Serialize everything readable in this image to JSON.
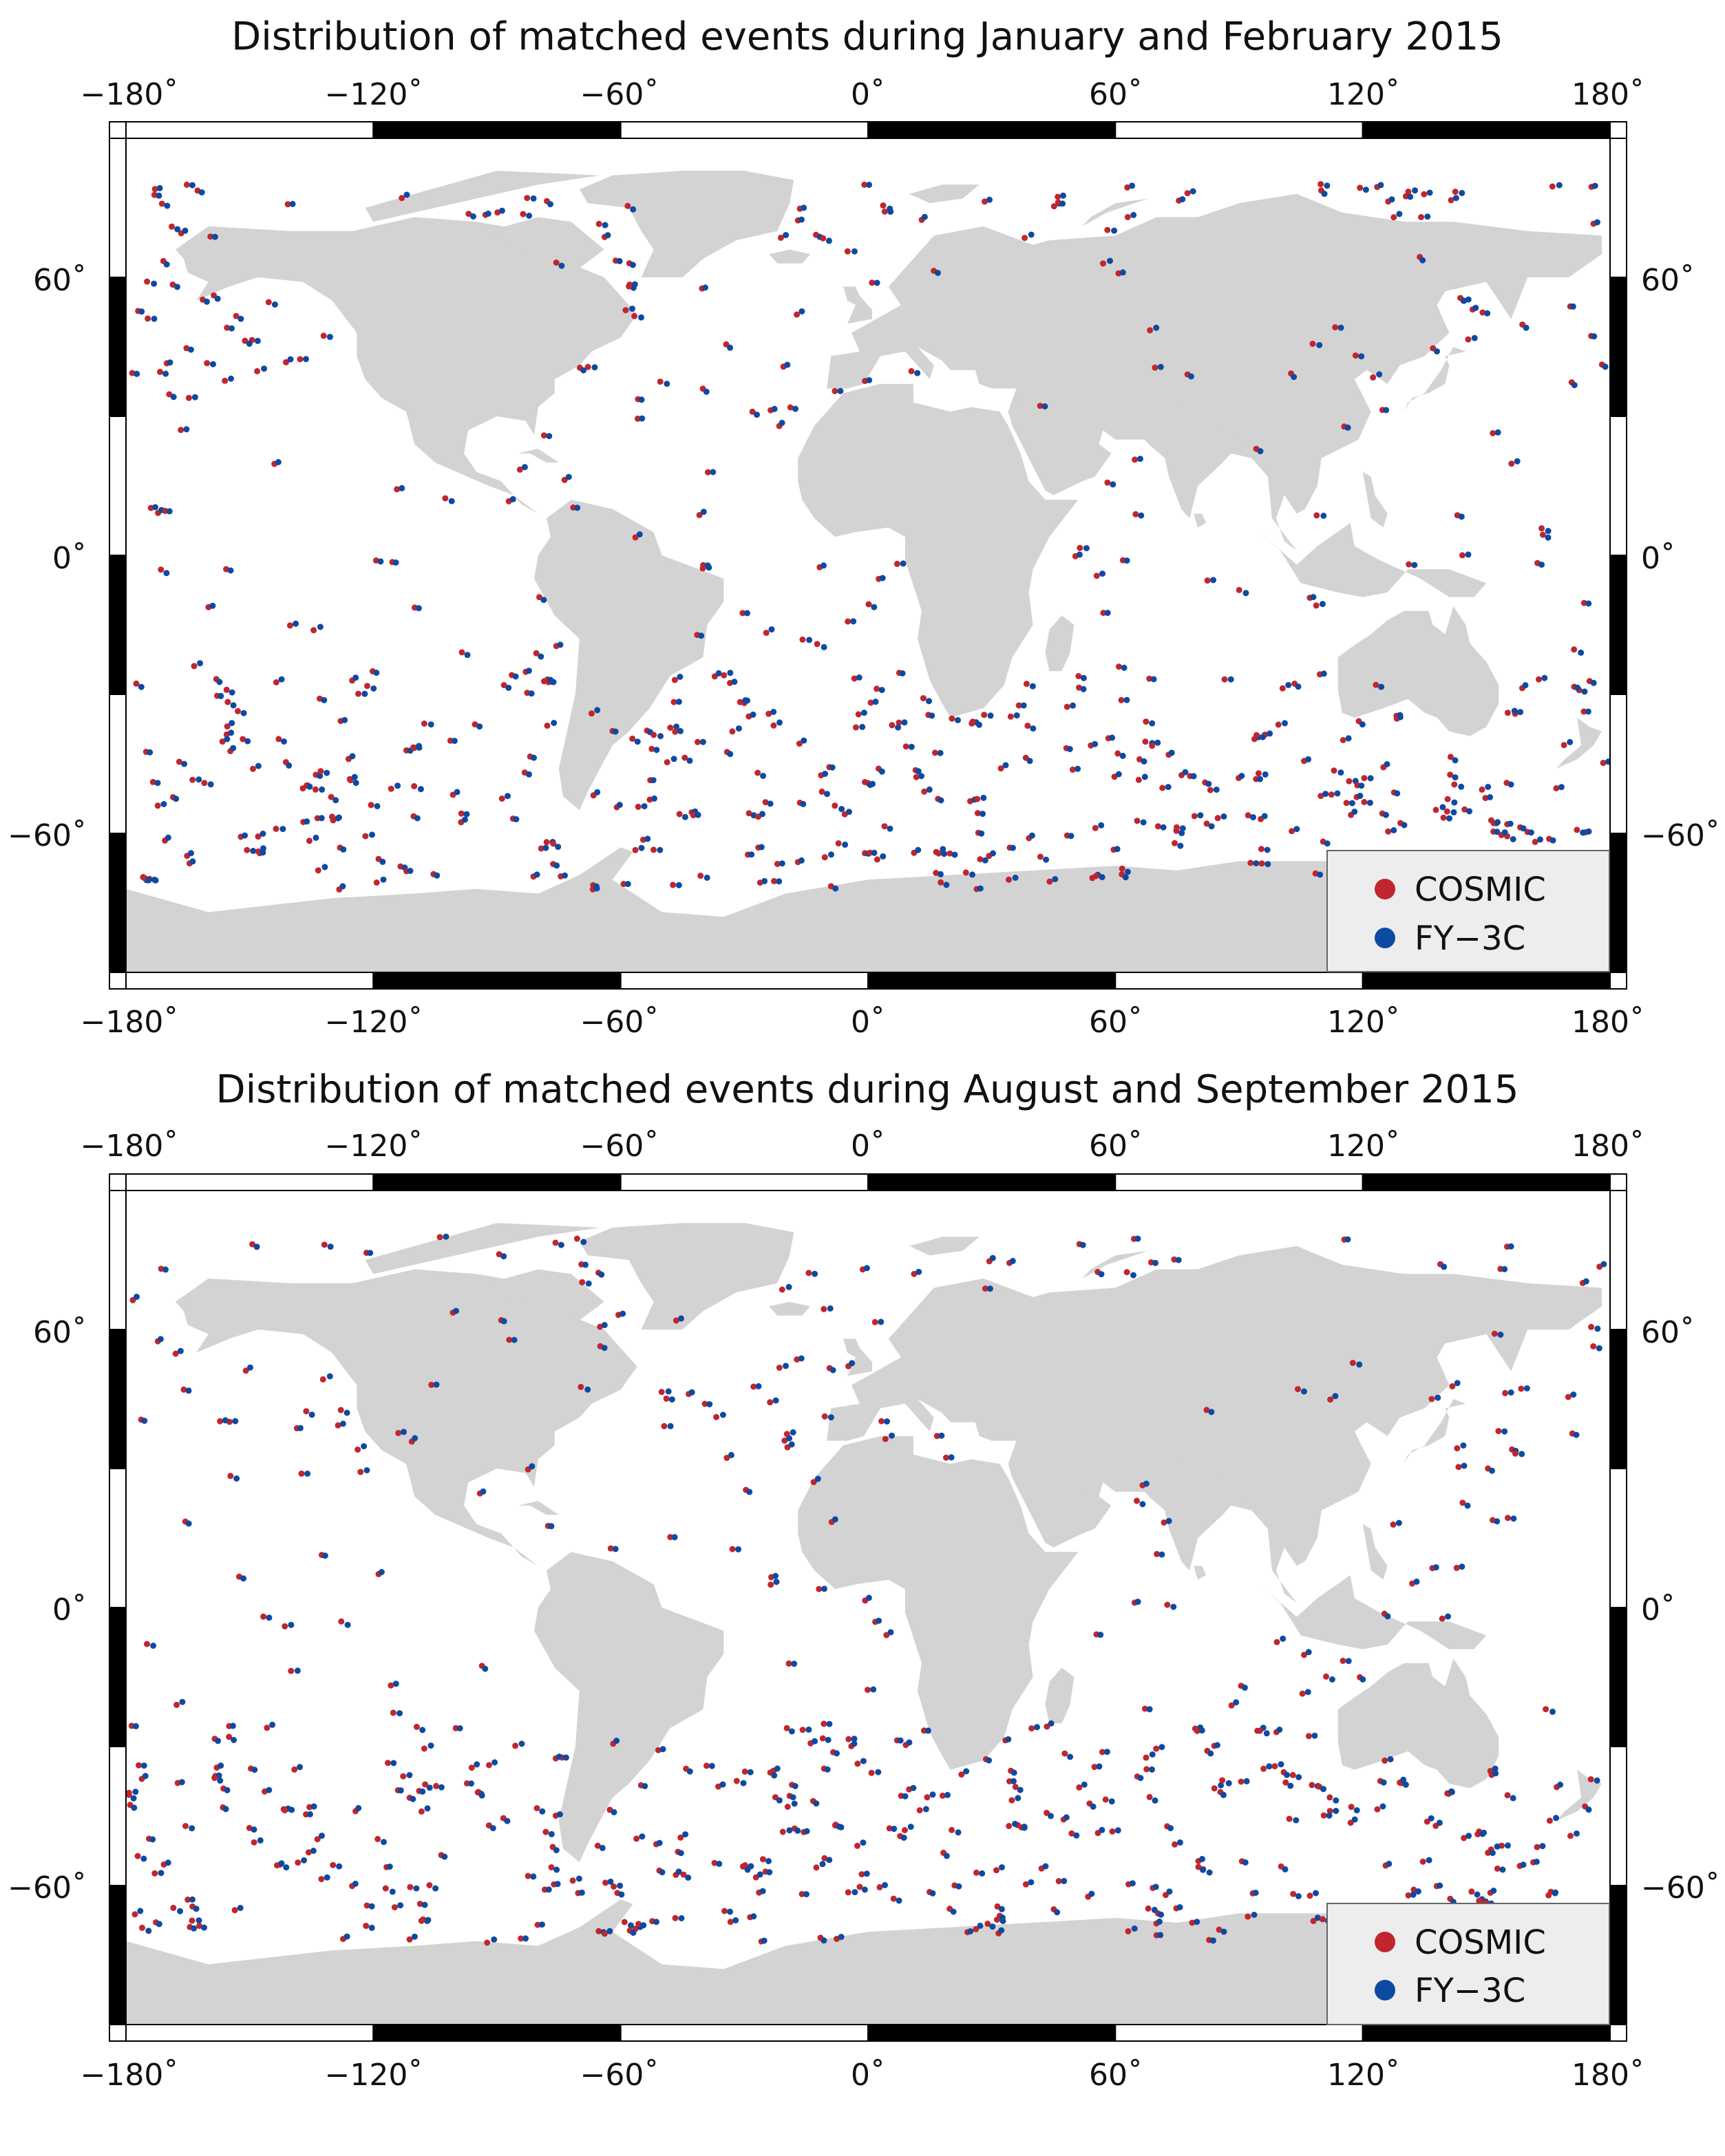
{
  "panels": [
    {
      "id": "jan-feb",
      "title": "Distribution of matched events during January and February 2015",
      "seed": 11,
      "cosmic_count": 520,
      "fy3c_count": 520
    },
    {
      "id": "aug-sep",
      "title": "Distribution of matched events during August and September 2015",
      "seed": 73,
      "cosmic_count": 480,
      "fy3c_count": 480
    }
  ],
  "axis": {
    "lon_ticks": [
      "−180˚",
      "−120˚",
      "−60˚",
      "0˚",
      "60˚",
      "120˚",
      "180˚"
    ],
    "lon_values": [
      -180,
      -120,
      -60,
      0,
      60,
      120,
      180
    ],
    "lat_ticks": [
      "60˚",
      "0˚",
      "−60˚"
    ],
    "lat_values": [
      60,
      0,
      -60
    ],
    "lon_range": [
      -180,
      180
    ],
    "lat_range": [
      -90,
      90
    ]
  },
  "legend": {
    "placement": "bottom-right",
    "items": [
      {
        "label": "COSMIC",
        "color": "#c0262d"
      },
      {
        "label": "FY−3C",
        "color": "#0d4aa3"
      }
    ]
  },
  "colors": {
    "land": "#d3d3d3",
    "ocean": "#ffffff",
    "frame_dark": "#000000",
    "legend_bg": "#ededed"
  }
}
